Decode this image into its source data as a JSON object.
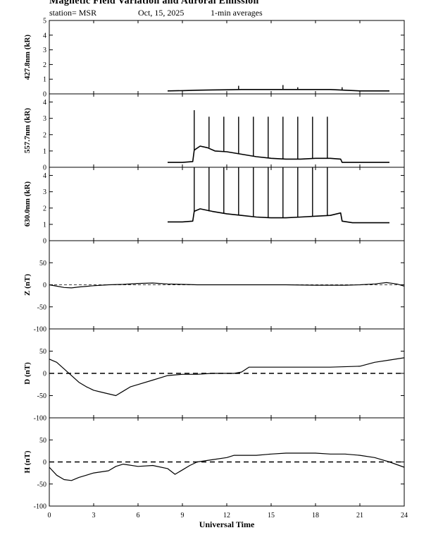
{
  "header": {
    "title": "Magnetic Field Variation and Auroral Emission",
    "station": "station= MSR",
    "date": "Oct, 15, 2025",
    "averaging": "1-min averages"
  },
  "chart_data": [
    {
      "type": "line",
      "ylabel": "427.8nm (kR)",
      "xlim": [
        0,
        24
      ],
      "ylim": [
        0,
        5
      ],
      "yticks": [
        0,
        1,
        2,
        3,
        4,
        5
      ],
      "baseline": null,
      "series": [
        {
          "x": [
            8.0,
            9.0,
            10.0,
            11.0,
            12.0,
            13.0,
            14.0,
            15.0,
            16.0,
            17.0,
            18.0,
            19.0,
            20.0,
            21.0,
            22.0,
            23.0
          ],
          "y": [
            0.2,
            0.22,
            0.25,
            0.27,
            0.28,
            0.3,
            0.3,
            0.3,
            0.3,
            0.3,
            0.3,
            0.3,
            0.25,
            0.2,
            0.2,
            0.2
          ]
        }
      ],
      "spikes": [
        {
          "x": 12.8,
          "top": 0.55
        },
        {
          "x": 15.8,
          "top": 0.6
        },
        {
          "x": 16.8,
          "top": 0.45
        },
        {
          "x": 19.8,
          "top": 0.45
        }
      ]
    },
    {
      "type": "line",
      "ylabel": "557.7nm (kR)",
      "xlim": [
        0,
        24
      ],
      "ylim": [
        0,
        4.5
      ],
      "yticks": [
        0,
        1,
        2,
        3,
        4
      ],
      "baseline": null,
      "series": [
        {
          "x": [
            8.0,
            9.0,
            9.7,
            9.8,
            10.2,
            10.7,
            11.2,
            12.0,
            13.0,
            14.0,
            15.0,
            16.0,
            17.0,
            18.0,
            19.0,
            19.7,
            19.8,
            20.5,
            21.5,
            22.5,
            23.0
          ],
          "y": [
            0.3,
            0.3,
            0.35,
            1.05,
            1.3,
            1.2,
            1.0,
            0.95,
            0.8,
            0.65,
            0.55,
            0.5,
            0.5,
            0.55,
            0.55,
            0.5,
            0.3,
            0.3,
            0.3,
            0.3,
            0.3
          ]
        }
      ],
      "spikes": [
        {
          "x": 9.8,
          "top": 3.5
        },
        {
          "x": 10.8,
          "top": 3.1
        },
        {
          "x": 11.8,
          "top": 3.1
        },
        {
          "x": 12.8,
          "top": 3.1
        },
        {
          "x": 13.8,
          "top": 3.1
        },
        {
          "x": 14.8,
          "top": 3.1
        },
        {
          "x": 15.8,
          "top": 3.1
        },
        {
          "x": 16.8,
          "top": 3.1
        },
        {
          "x": 17.8,
          "top": 3.1
        },
        {
          "x": 18.8,
          "top": 3.1
        }
      ]
    },
    {
      "type": "line",
      "ylabel": "630.0nm (kR)",
      "xlim": [
        0,
        24
      ],
      "ylim": [
        0,
        4.5
      ],
      "yticks": [
        0,
        1,
        2,
        3,
        4
      ],
      "baseline": null,
      "series": [
        {
          "x": [
            8.0,
            9.0,
            9.7,
            9.8,
            10.2,
            11.0,
            12.0,
            13.0,
            14.0,
            15.0,
            16.0,
            17.0,
            18.0,
            19.0,
            19.7,
            19.8,
            20.5,
            21.5,
            22.5,
            23.0
          ],
          "y": [
            1.15,
            1.15,
            1.2,
            1.8,
            1.95,
            1.8,
            1.65,
            1.55,
            1.45,
            1.4,
            1.4,
            1.45,
            1.5,
            1.55,
            1.7,
            1.2,
            1.1,
            1.1,
            1.1,
            1.1
          ]
        }
      ],
      "spikes": [
        {
          "x": 9.8,
          "top": 4.5
        },
        {
          "x": 10.8,
          "top": 4.5
        },
        {
          "x": 11.8,
          "top": 4.5
        },
        {
          "x": 12.8,
          "top": 4.5
        },
        {
          "x": 13.8,
          "top": 4.5
        },
        {
          "x": 14.8,
          "top": 4.5
        },
        {
          "x": 15.8,
          "top": 4.5
        },
        {
          "x": 16.8,
          "top": 4.5
        },
        {
          "x": 17.8,
          "top": 4.5
        },
        {
          "x": 18.8,
          "top": 4.5
        }
      ]
    },
    {
      "type": "line",
      "ylabel": "Z (nT)",
      "xlim": [
        0,
        24
      ],
      "ylim": [
        -100,
        100
      ],
      "yticks": [
        -100,
        -50,
        0,
        50
      ],
      "baseline": {
        "y": 0,
        "style": "dashed-thin"
      },
      "series": [
        {
          "x": [
            0,
            0.5,
            1.0,
            1.5,
            2.0,
            3.0,
            4.0,
            5.0,
            6.0,
            7.0,
            8.0,
            9.0,
            10.0,
            12.0,
            14.0,
            16.0,
            18.0,
            20.0,
            21.0,
            22.0,
            22.8,
            23.5,
            24.0
          ],
          "y": [
            0,
            -3,
            -6,
            -7,
            -5,
            -2,
            0,
            1,
            3,
            4,
            2,
            1,
            0,
            0,
            0,
            0,
            -1,
            -1,
            0,
            2,
            5,
            2,
            -3
          ]
        }
      ]
    },
    {
      "type": "line",
      "ylabel": "D (nT)",
      "xlim": [
        0,
        24
      ],
      "ylim": [
        -100,
        100
      ],
      "yticks": [
        -100,
        -50,
        0,
        50
      ],
      "baseline": {
        "y": 0,
        "style": "dashed-bold"
      },
      "series": [
        {
          "x": [
            0,
            0.5,
            1.0,
            1.5,
            2.0,
            2.5,
            3.0,
            3.5,
            4.0,
            4.5,
            5.0,
            5.5,
            6.0,
            7.0,
            7.5,
            8.0,
            9.0,
            10.0,
            11.0,
            12.0,
            12.5,
            13.0,
            13.5,
            15.0,
            17.0,
            19.0,
            21.0,
            22.0,
            23.0,
            24.0
          ],
          "y": [
            32,
            25,
            10,
            -5,
            -20,
            -30,
            -38,
            -42,
            -46,
            -50,
            -40,
            -30,
            -25,
            -15,
            -10,
            -5,
            -2,
            -2,
            0,
            0,
            0,
            3,
            14,
            14,
            14,
            14,
            16,
            25,
            30,
            35
          ]
        }
      ]
    },
    {
      "type": "line",
      "ylabel": "H (nT)",
      "xlim": [
        0,
        24
      ],
      "ylim": [
        -100,
        100
      ],
      "yticks": [
        -100,
        -50,
        0,
        50
      ],
      "baseline": {
        "y": 0,
        "style": "dashed-bold"
      },
      "series": [
        {
          "x": [
            0,
            0.5,
            1.0,
            1.5,
            2.0,
            2.5,
            3.0,
            4.0,
            4.5,
            5.0,
            6.0,
            7.0,
            8.0,
            8.5,
            9.0,
            9.5,
            10.0,
            11.0,
            12.0,
            12.5,
            13.0,
            14.0,
            15.0,
            16.0,
            17.0,
            18.0,
            19.0,
            20.0,
            21.0,
            22.0,
            22.5,
            23.0,
            24.0
          ],
          "y": [
            -12,
            -30,
            -40,
            -42,
            -35,
            -30,
            -25,
            -20,
            -10,
            -5,
            -10,
            -8,
            -15,
            -28,
            -18,
            -8,
            0,
            5,
            10,
            15,
            15,
            15,
            18,
            20,
            20,
            20,
            18,
            18,
            15,
            10,
            5,
            0,
            -12
          ]
        }
      ]
    }
  ],
  "x_axis": {
    "label": "Universal Time",
    "ticks": [
      0,
      3,
      6,
      9,
      12,
      15,
      18,
      21,
      24
    ]
  }
}
